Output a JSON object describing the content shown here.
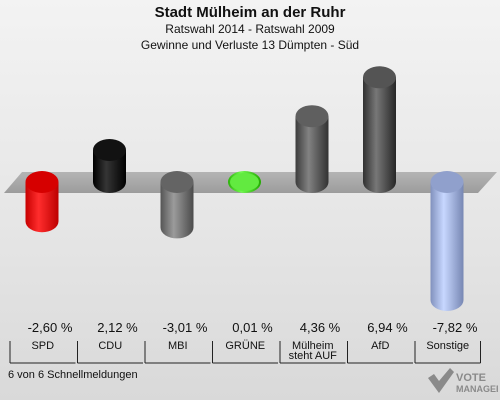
{
  "header": {
    "title": "Stadt Mülheim an der Ruhr",
    "subtitle": "Ratswahl 2014 - Ratswahl 2009",
    "subtitle2": "Gewinne und Verluste 13 Dümpten - Süd"
  },
  "footer": {
    "note": "6 von 6 Schnellmeldungen"
  },
  "logo": {
    "text": "VOTE",
    "subtext": "MANAGER"
  },
  "chart_data": {
    "type": "bar",
    "title": "Stadt Mülheim an der Ruhr",
    "categories": [
      "SPD",
      "CDU",
      "MBI",
      "GRÜNE",
      "Mülheim steht AUF",
      "AfD",
      "Sonstige"
    ],
    "values": [
      -2.6,
      2.12,
      -3.01,
      0.01,
      4.36,
      6.94,
      -7.82
    ],
    "value_labels": [
      "-2,60 %",
      "2,12 %",
      "-3,01 %",
      "0,01 %",
      "4,36 %",
      "6,94 %",
      "-7,82 %"
    ],
    "colors": [
      "#e00000",
      "#080808",
      "#6e6e6e",
      "#44cc22",
      "#555555",
      "#4a4a4a",
      "#9aaad6"
    ],
    "ylim": [
      -7.82,
      6.94
    ],
    "grid": false,
    "legend": "none"
  }
}
